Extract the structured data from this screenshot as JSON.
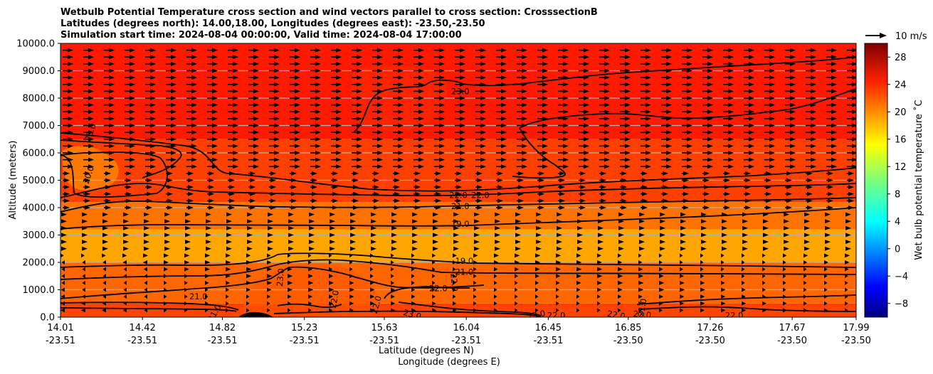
{
  "chart_data": {
    "type": "contour",
    "title_lines": [
      "Wetbulb Potential Temperature cross section and wind vectors parallel to cross section: CrosssectionB",
      "Latitudes (degrees north): 14.00,18.00, Longitudes (degrees east): -23.50,-23.50",
      "Simulation start time: 2024-08-04 00:00:00, Valid time: 2024-08-04 17:00:00"
    ],
    "ylabel": "Altitude (meters)",
    "xlabel_lines": [
      "Latitude (degrees N)",
      "Longitude (degrees E)"
    ],
    "ylim": [
      0,
      10000
    ],
    "yticks": [
      0,
      1000,
      2000,
      3000,
      4000,
      5000,
      6000,
      7000,
      8000,
      9000,
      10000
    ],
    "ytick_labels": [
      "0.0",
      "1000.0",
      "2000.0",
      "3000.0",
      "4000.0",
      "5000.0",
      "6000.0",
      "7000.0",
      "8000.0",
      "9000.0",
      "10000.0"
    ],
    "xlim": [
      14.01,
      17.99
    ],
    "xticks": [
      {
        "lat": "14.01",
        "lon": "-23.51"
      },
      {
        "lat": "14.42",
        "lon": "-23.51"
      },
      {
        "lat": "14.82",
        "lon": "-23.51"
      },
      {
        "lat": "15.23",
        "lon": "-23.51"
      },
      {
        "lat": "15.63",
        "lon": "-23.51"
      },
      {
        "lat": "16.04",
        "lon": "-23.51"
      },
      {
        "lat": "16.45",
        "lon": "-23.51"
      },
      {
        "lat": "16.85",
        "lon": "-23.50"
      },
      {
        "lat": "17.26",
        "lon": "-23.50"
      },
      {
        "lat": "17.67",
        "lon": "-23.50"
      },
      {
        "lat": "17.99",
        "lon": "-23.50"
      }
    ],
    "colorbar": {
      "label": "Wet bulb potential temperature ˚C",
      "range": [
        -10,
        30
      ],
      "ticks": [
        -8,
        -4,
        0,
        4,
        8,
        12,
        16,
        20,
        24,
        28
      ],
      "tick_labels": [
        "−8",
        "−4",
        "0",
        "4",
        "8",
        "12",
        "16",
        "20",
        "24",
        "28"
      ]
    },
    "quiver_key": "10 m/s",
    "field_bands": [
      {
        "zmin": 0,
        "zmax": 500,
        "value": 22.5
      },
      {
        "zmin": 500,
        "zmax": 2000,
        "value": 21
      },
      {
        "zmin": 2000,
        "zmax": 3200,
        "value": 18.5
      },
      {
        "zmin": 3200,
        "zmax": 4200,
        "value": 20.5
      },
      {
        "zmin": 4200,
        "zmax": 6500,
        "value": 22.5
      },
      {
        "zmin": 6500,
        "zmax": 10000,
        "value": 24
      }
    ],
    "contour_labels": [
      {
        "text": "23.0",
        "lat": 16.01,
        "z": 8250,
        "rot": 0
      },
      {
        "text": "23.0",
        "lat": 14.16,
        "z": 6750,
        "rot": -70
      },
      {
        "text": "20.0",
        "lat": 14.15,
        "z": 5200,
        "rot": -72
      },
      {
        "text": "22.0",
        "lat": 16.0,
        "z": 4450,
        "rot": 0
      },
      {
        "text": "22.0",
        "lat": 16.11,
        "z": 4450,
        "rot": 0
      },
      {
        "text": "21.0",
        "lat": 16.01,
        "z": 4050,
        "rot": 0
      },
      {
        "text": "19.0",
        "lat": 16.01,
        "z": 3400,
        "rot": 0
      },
      {
        "text": "19.0",
        "lat": 16.03,
        "z": 2050,
        "rot": 0
      },
      {
        "text": "21.0",
        "lat": 16.03,
        "z": 1650,
        "rot": 0
      },
      {
        "text": "22.0",
        "lat": 15.98,
        "z": 1270,
        "rot": 85
      },
      {
        "text": "22.0",
        "lat": 15.9,
        "z": 1050,
        "rot": 0
      },
      {
        "text": "21.0",
        "lat": 14.7,
        "z": 750,
        "rot": 0
      },
      {
        "text": "23.0",
        "lat": 15.11,
        "z": 1450,
        "rot": -85
      },
      {
        "text": "22.0",
        "lat": 15.38,
        "z": 650,
        "rot": -80
      },
      {
        "text": "22.0",
        "lat": 15.59,
        "z": 450,
        "rot": -75
      },
      {
        "text": "23.0",
        "lat": 15.77,
        "z": 100,
        "rot": 15
      },
      {
        "text": "23.0",
        "lat": 16.39,
        "z": 80,
        "rot": -12
      },
      {
        "text": "22.0",
        "lat": 16.49,
        "z": 60,
        "rot": 0
      },
      {
        "text": "22.0",
        "lat": 16.79,
        "z": 80,
        "rot": 10
      },
      {
        "text": "21.0",
        "lat": 16.92,
        "z": 350,
        "rot": -80
      },
      {
        "text": "22.0",
        "lat": 16.92,
        "z": 100,
        "rot": 5
      },
      {
        "text": "22.0",
        "lat": 17.38,
        "z": 60,
        "rot": 0
      },
      {
        "text": "21.0",
        "lat": 14.78,
        "z": 150,
        "rot": -60
      }
    ]
  }
}
